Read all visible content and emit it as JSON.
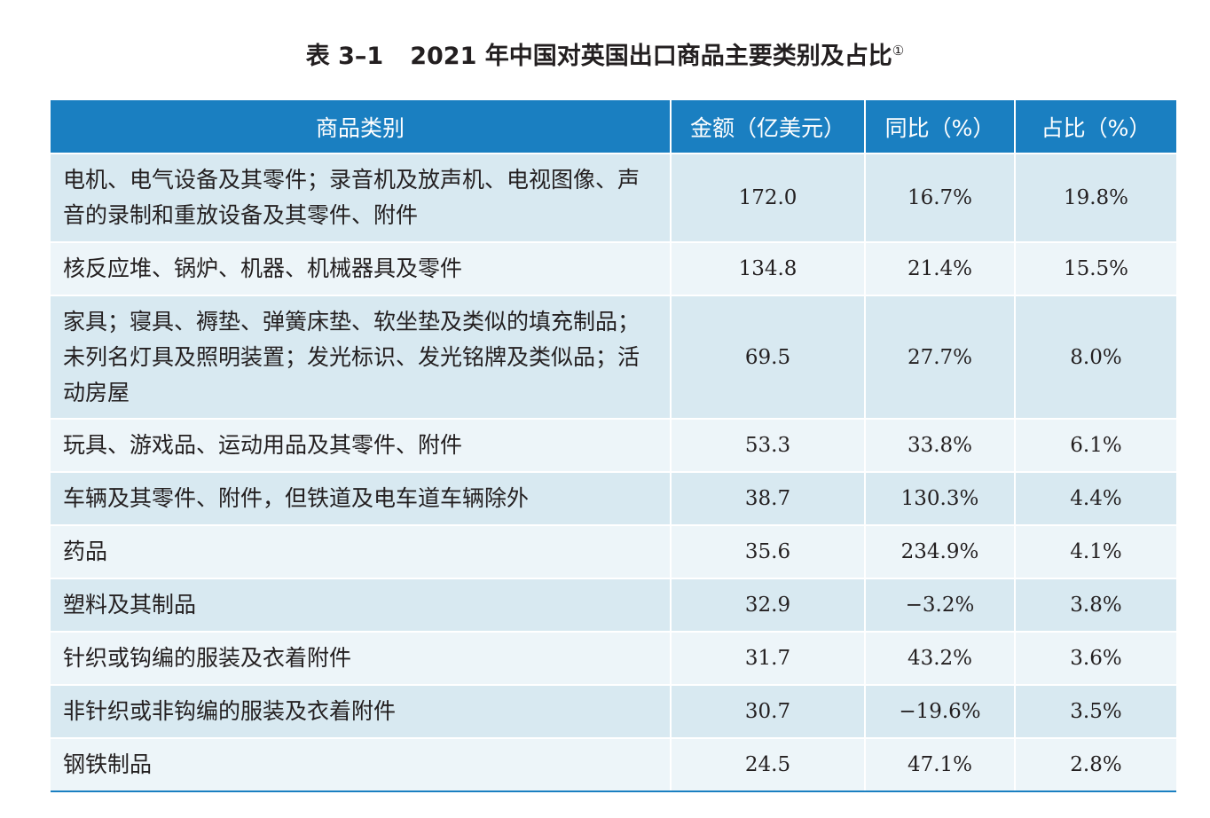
{
  "title": {
    "number": "表 3–1",
    "text": "2021 年中国对英国出口商品主要类别及占比",
    "footnote_mark": "①"
  },
  "table": {
    "headers": [
      "商品类别",
      "金额（亿美元）",
      "同比（%）",
      "占比（%）"
    ],
    "rows": [
      {
        "category": "电机、电气设备及其零件；录音机及放声机、电视图像、声音的录制和重放设备及其零件、附件",
        "amount": "172.0",
        "yoy": "16.7%",
        "share": "19.8%"
      },
      {
        "category": "核反应堆、锅炉、机器、机械器具及零件",
        "amount": "134.8",
        "yoy": "21.4%",
        "share": "15.5%"
      },
      {
        "category": "家具；寝具、褥垫、弹簧床垫、软坐垫及类似的填充制品；未列名灯具及照明装置；发光标识、发光铭牌及类似品；活动房屋",
        "amount": "69.5",
        "yoy": "27.7%",
        "share": "8.0%"
      },
      {
        "category": "玩具、游戏品、运动用品及其零件、附件",
        "amount": "53.3",
        "yoy": "33.8%",
        "share": "6.1%"
      },
      {
        "category": "车辆及其零件、附件，但铁道及电车道车辆除外",
        "amount": "38.7",
        "yoy": "130.3%",
        "share": "4.4%"
      },
      {
        "category": "药品",
        "amount": "35.6",
        "yoy": "234.9%",
        "share": "4.1%"
      },
      {
        "category": "塑料及其制品",
        "amount": "32.9",
        "yoy": "−3.2%",
        "share": "3.8%"
      },
      {
        "category": "针织或钩编的服装及衣着附件",
        "amount": "31.7",
        "yoy": "43.2%",
        "share": "3.6%"
      },
      {
        "category": "非针织或非钩编的服装及衣着附件",
        "amount": "30.7",
        "yoy": "−19.6%",
        "share": "3.5%"
      },
      {
        "category": "钢铁制品",
        "amount": "24.5",
        "yoy": "47.1%",
        "share": "2.8%"
      }
    ]
  },
  "colors": {
    "header_bg": "#1a7fc1",
    "row_dark": "#d8e9f1",
    "row_light": "#edf5f9"
  }
}
